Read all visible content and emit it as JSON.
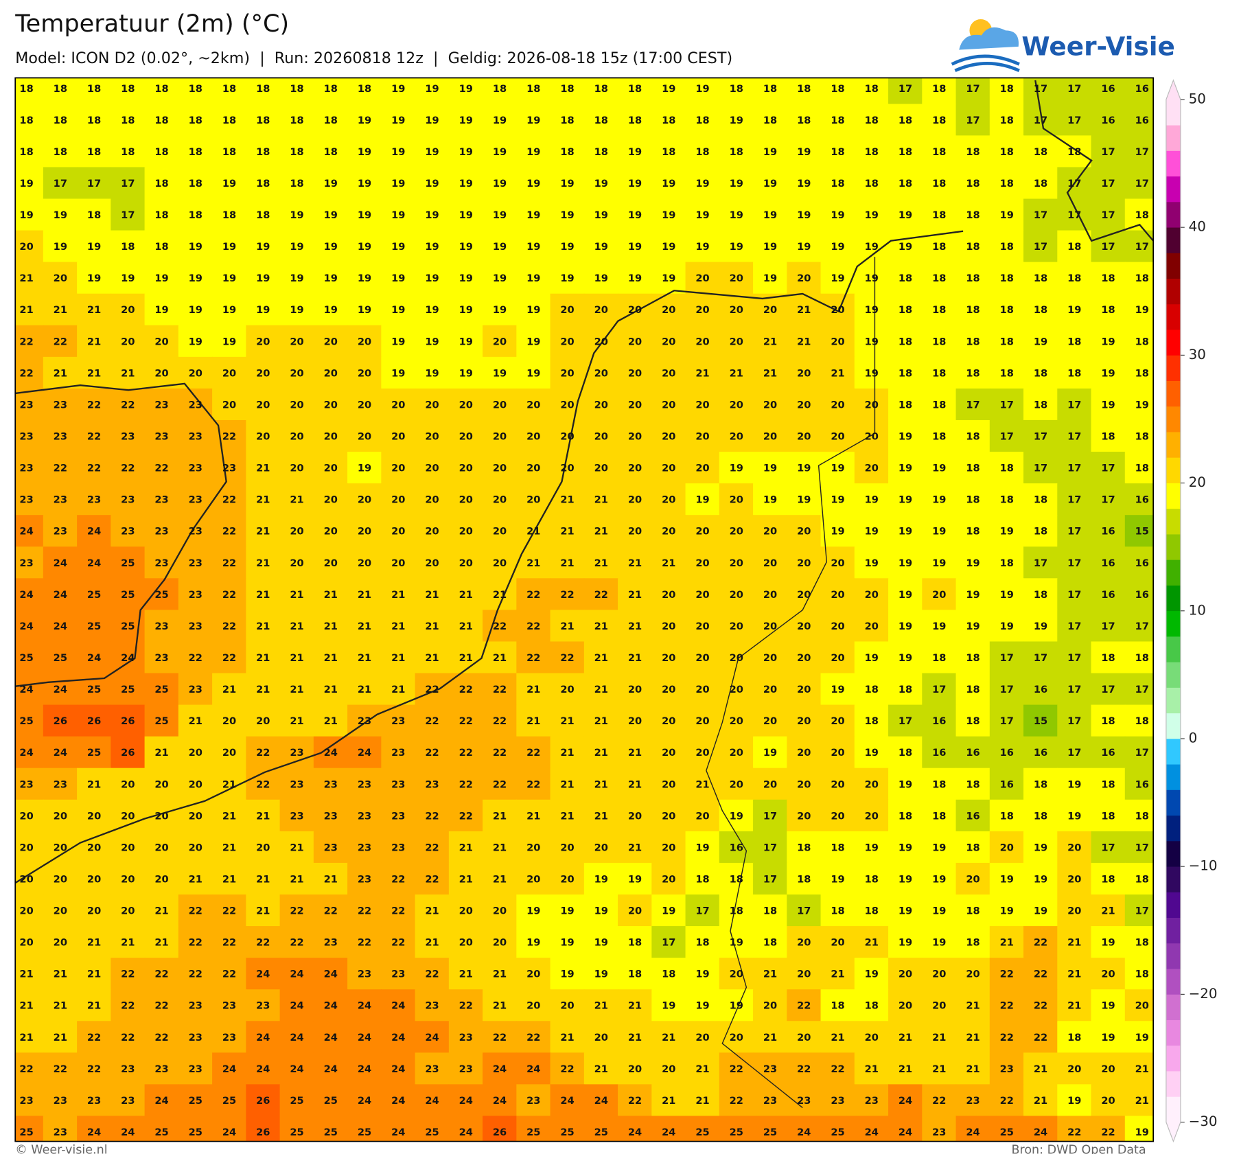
{
  "header": {
    "title": "Temperatuur (2m) (°C)",
    "subtitle": "Model: ICON D2 (0.02°, ~2km)  |  Run: 20260818 12z  |  Geldig: 2026-08-18 15z (17:00 CEST)",
    "logo": "Weer-Visie"
  },
  "grid": {
    "rows": [
      [
        18,
        18,
        18,
        18,
        18,
        18,
        18,
        18,
        18,
        18,
        18,
        19,
        19,
        19,
        18,
        18,
        18,
        18,
        18,
        19,
        19,
        18,
        18,
        18,
        18,
        18,
        17,
        18,
        17,
        18,
        17,
        17,
        16,
        16
      ],
      [
        18,
        18,
        18,
        18,
        18,
        18,
        18,
        18,
        18,
        18,
        19,
        19,
        19,
        19,
        19,
        19,
        18,
        18,
        18,
        18,
        18,
        19,
        18,
        18,
        18,
        18,
        18,
        18,
        17,
        18,
        17,
        17,
        16,
        16
      ],
      [
        18,
        18,
        18,
        18,
        18,
        18,
        18,
        18,
        18,
        18,
        19,
        19,
        19,
        19,
        19,
        19,
        18,
        18,
        19,
        18,
        18,
        18,
        19,
        19,
        18,
        18,
        18,
        18,
        18,
        18,
        18,
        18,
        17,
        17
      ],
      [
        19,
        17,
        17,
        17,
        18,
        18,
        19,
        18,
        18,
        19,
        19,
        19,
        19,
        19,
        19,
        19,
        19,
        19,
        19,
        19,
        19,
        19,
        19,
        19,
        18,
        18,
        18,
        18,
        18,
        18,
        18,
        17,
        17,
        17
      ],
      [
        19,
        19,
        18,
        17,
        18,
        18,
        18,
        18,
        19,
        19,
        19,
        19,
        19,
        19,
        19,
        19,
        19,
        19,
        19,
        19,
        19,
        19,
        19,
        19,
        19,
        19,
        19,
        18,
        18,
        19,
        17,
        17,
        17,
        18
      ],
      [
        20,
        19,
        19,
        18,
        18,
        19,
        19,
        19,
        19,
        19,
        19,
        19,
        19,
        19,
        19,
        19,
        19,
        19,
        19,
        19,
        19,
        19,
        19,
        19,
        19,
        19,
        19,
        18,
        18,
        18,
        17,
        18,
        17,
        17
      ],
      [
        21,
        20,
        19,
        19,
        19,
        19,
        19,
        19,
        19,
        19,
        19,
        19,
        19,
        19,
        19,
        19,
        19,
        19,
        19,
        19,
        20,
        20,
        19,
        20,
        19,
        19,
        18,
        18,
        18,
        18,
        18,
        18,
        18,
        18
      ],
      [
        21,
        21,
        21,
        20,
        19,
        19,
        19,
        19,
        19,
        19,
        19,
        19,
        19,
        19,
        19,
        19,
        20,
        20,
        20,
        20,
        20,
        20,
        20,
        21,
        20,
        19,
        18,
        18,
        18,
        18,
        18,
        19,
        18,
        19
      ],
      [
        22,
        22,
        21,
        20,
        20,
        19,
        19,
        20,
        20,
        20,
        20,
        19,
        19,
        19,
        20,
        19,
        20,
        20,
        20,
        20,
        20,
        20,
        21,
        21,
        20,
        19,
        18,
        18,
        18,
        18,
        19,
        18,
        19,
        18
      ],
      [
        22,
        21,
        21,
        21,
        20,
        20,
        20,
        20,
        20,
        20,
        20,
        19,
        19,
        19,
        19,
        19,
        20,
        20,
        20,
        20,
        21,
        21,
        21,
        20,
        21,
        19,
        18,
        18,
        18,
        18,
        18,
        18,
        19,
        18
      ],
      [
        23,
        23,
        22,
        22,
        23,
        23,
        20,
        20,
        20,
        20,
        20,
        20,
        20,
        20,
        20,
        20,
        20,
        20,
        20,
        20,
        20,
        20,
        20,
        20,
        20,
        20,
        18,
        18,
        17,
        17,
        18,
        17,
        19,
        19
      ],
      [
        23,
        23,
        22,
        23,
        23,
        23,
        22,
        20,
        20,
        20,
        20,
        20,
        20,
        20,
        20,
        20,
        20,
        20,
        20,
        20,
        20,
        20,
        20,
        20,
        20,
        20,
        19,
        18,
        18,
        17,
        17,
        17,
        18,
        18
      ],
      [
        23,
        22,
        22,
        22,
        22,
        23,
        23,
        21,
        20,
        20,
        19,
        20,
        20,
        20,
        20,
        20,
        20,
        20,
        20,
        20,
        20,
        19,
        19,
        19,
        19,
        20,
        19,
        19,
        18,
        18,
        17,
        17,
        17,
        18
      ],
      [
        23,
        23,
        23,
        23,
        23,
        23,
        22,
        21,
        21,
        20,
        20,
        20,
        20,
        20,
        20,
        20,
        21,
        21,
        20,
        20,
        19,
        20,
        19,
        19,
        19,
        19,
        19,
        19,
        18,
        18,
        18,
        17,
        17,
        16
      ],
      [
        24,
        23,
        24,
        23,
        23,
        23,
        22,
        21,
        20,
        20,
        20,
        20,
        20,
        20,
        20,
        21,
        21,
        21,
        20,
        20,
        20,
        20,
        20,
        20,
        19,
        19,
        19,
        19,
        18,
        19,
        18,
        17,
        16,
        15
      ],
      [
        23,
        24,
        24,
        25,
        23,
        23,
        22,
        21,
        20,
        20,
        20,
        20,
        20,
        20,
        20,
        21,
        21,
        21,
        21,
        21,
        20,
        20,
        20,
        20,
        20,
        19,
        19,
        19,
        19,
        18,
        17,
        17,
        16,
        16
      ],
      [
        24,
        24,
        25,
        25,
        25,
        23,
        22,
        21,
        21,
        21,
        21,
        21,
        21,
        21,
        21,
        22,
        22,
        22,
        21,
        20,
        20,
        20,
        20,
        20,
        20,
        20,
        19,
        20,
        19,
        19,
        18,
        17,
        16,
        16
      ],
      [
        24,
        24,
        25,
        25,
        23,
        23,
        22,
        21,
        21,
        21,
        21,
        21,
        21,
        21,
        22,
        22,
        21,
        21,
        21,
        20,
        20,
        20,
        20,
        20,
        20,
        20,
        19,
        19,
        19,
        19,
        19,
        17,
        17,
        17
      ],
      [
        25,
        25,
        24,
        24,
        23,
        22,
        22,
        21,
        21,
        21,
        21,
        21,
        21,
        21,
        21,
        22,
        22,
        21,
        21,
        20,
        20,
        20,
        20,
        20,
        20,
        19,
        19,
        18,
        18,
        17,
        17,
        17,
        18,
        18
      ],
      [
        24,
        24,
        25,
        25,
        25,
        23,
        21,
        21,
        21,
        21,
        21,
        21,
        22,
        22,
        22,
        21,
        20,
        21,
        20,
        20,
        20,
        20,
        20,
        20,
        19,
        18,
        18,
        17,
        18,
        17,
        16,
        17,
        17,
        17
      ],
      [
        25,
        26,
        26,
        26,
        25,
        21,
        20,
        20,
        21,
        21,
        23,
        23,
        22,
        22,
        22,
        21,
        21,
        21,
        20,
        20,
        20,
        20,
        20,
        20,
        20,
        18,
        17,
        16,
        18,
        17,
        15,
        17,
        18,
        18
      ],
      [
        24,
        24,
        25,
        26,
        21,
        20,
        20,
        22,
        23,
        24,
        24,
        23,
        22,
        22,
        22,
        22,
        21,
        21,
        21,
        20,
        20,
        20,
        19,
        20,
        20,
        19,
        18,
        16,
        16,
        16,
        16,
        17,
        16,
        17
      ],
      [
        23,
        23,
        21,
        20,
        20,
        20,
        21,
        22,
        23,
        23,
        23,
        23,
        23,
        22,
        22,
        22,
        21,
        21,
        21,
        20,
        21,
        20,
        20,
        20,
        20,
        20,
        19,
        18,
        18,
        16,
        18,
        19,
        18,
        16
      ],
      [
        20,
        20,
        20,
        20,
        20,
        20,
        21,
        21,
        23,
        23,
        23,
        23,
        22,
        22,
        21,
        21,
        21,
        21,
        20,
        20,
        20,
        19,
        17,
        20,
        20,
        20,
        18,
        18,
        16,
        18,
        18,
        19,
        18,
        18
      ],
      [
        20,
        20,
        20,
        20,
        20,
        20,
        21,
        20,
        21,
        23,
        23,
        23,
        22,
        21,
        21,
        20,
        20,
        20,
        21,
        20,
        19,
        16,
        17,
        18,
        18,
        19,
        19,
        19,
        18,
        20,
        19,
        20,
        17,
        17
      ],
      [
        20,
        20,
        20,
        20,
        20,
        21,
        21,
        21,
        21,
        21,
        23,
        22,
        22,
        21,
        21,
        20,
        20,
        19,
        19,
        20,
        18,
        18,
        17,
        18,
        19,
        18,
        19,
        19,
        20,
        19,
        19,
        20,
        18,
        18
      ],
      [
        20,
        20,
        20,
        20,
        21,
        22,
        22,
        21,
        22,
        22,
        22,
        22,
        21,
        20,
        20,
        19,
        19,
        19,
        20,
        19,
        17,
        18,
        18,
        17,
        18,
        18,
        19,
        19,
        18,
        19,
        19,
        20,
        21,
        17
      ],
      [
        20,
        20,
        21,
        21,
        21,
        22,
        22,
        22,
        22,
        23,
        22,
        22,
        21,
        20,
        20,
        19,
        19,
        19,
        18,
        17,
        18,
        19,
        18,
        20,
        20,
        21,
        19,
        19,
        18,
        21,
        22,
        21,
        19,
        18
      ],
      [
        21,
        21,
        21,
        22,
        22,
        22,
        22,
        24,
        24,
        24,
        23,
        23,
        22,
        21,
        21,
        20,
        19,
        19,
        18,
        18,
        19,
        20,
        21,
        20,
        21,
        19,
        20,
        20,
        20,
        22,
        22,
        21,
        20,
        18
      ],
      [
        21,
        21,
        21,
        22,
        22,
        23,
        23,
        23,
        24,
        24,
        24,
        24,
        23,
        22,
        21,
        20,
        20,
        21,
        21,
        19,
        19,
        19,
        20,
        22,
        18,
        18,
        20,
        20,
        21,
        22,
        22,
        21,
        19,
        20
      ],
      [
        21,
        21,
        22,
        22,
        22,
        23,
        23,
        24,
        24,
        24,
        24,
        24,
        24,
        23,
        22,
        22,
        21,
        20,
        21,
        21,
        20,
        20,
        21,
        20,
        21,
        20,
        21,
        21,
        21,
        22,
        22,
        18,
        19,
        19
      ],
      [
        22,
        22,
        22,
        23,
        23,
        23,
        24,
        24,
        24,
        24,
        24,
        24,
        23,
        23,
        24,
        24,
        22,
        21,
        20,
        20,
        21,
        22,
        23,
        22,
        22,
        21,
        21,
        21,
        21,
        23,
        21,
        20,
        20,
        21
      ],
      [
        23,
        23,
        23,
        23,
        24,
        25,
        25,
        26,
        25,
        25,
        24,
        24,
        24,
        24,
        24,
        23,
        24,
        24,
        22,
        21,
        21,
        22,
        23,
        23,
        23,
        23,
        24,
        22,
        23,
        22,
        21,
        19,
        20,
        21
      ],
      [
        25,
        23,
        24,
        24,
        25,
        25,
        24,
        26,
        25,
        25,
        25,
        24,
        25,
        24,
        26,
        25,
        25,
        25,
        24,
        24,
        25,
        25,
        25,
        24,
        25,
        24,
        24,
        23,
        24,
        25,
        24,
        22,
        22,
        19
      ]
    ]
  },
  "colorbar": {
    "levels": [
      -30,
      -28,
      -26,
      -24,
      -22,
      -20,
      -18,
      -16,
      -14,
      -12,
      -10,
      -8,
      -6,
      -4,
      -2,
      0,
      2,
      4,
      6,
      8,
      10,
      12,
      14,
      16,
      18,
      20,
      22,
      24,
      26,
      28,
      30,
      32,
      34,
      36,
      38,
      40,
      42,
      44,
      46,
      48,
      50
    ],
    "colors": [
      "#fff0fc",
      "#ffd0f4",
      "#f8a8ec",
      "#e888e0",
      "#d070d0",
      "#b050c0",
      "#9038b0",
      "#7020a0",
      "#500890",
      "#300860",
      "#140044",
      "#00207e",
      "#0048b0",
      "#0090e0",
      "#30c8ff",
      "#d0ffe8",
      "#a8f0a8",
      "#78dc78",
      "#48c848",
      "#00b800",
      "#009600",
      "#40b000",
      "#90c800",
      "#c8dc00",
      "#ffff00",
      "#ffd800",
      "#ffb000",
      "#ff8800",
      "#ff6000",
      "#ff3000",
      "#ff0000",
      "#d80000",
      "#b00000",
      "#800000",
      "#500030",
      "#900070",
      "#c800b0",
      "#ff50d8",
      "#ffa8d8",
      "#ffe0f4"
    ],
    "ticks": [
      {
        "value": -30,
        "label": "−30"
      },
      {
        "value": -20,
        "label": "−20"
      },
      {
        "value": -10,
        "label": "−10"
      },
      0,
      10,
      20,
      30,
      40,
      50
    ]
  },
  "footer": {
    "copyright": "© Weer-visie.nl",
    "source": "Bron: DWD Open Data"
  }
}
